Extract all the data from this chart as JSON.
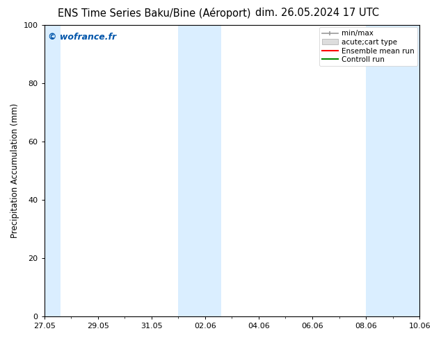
{
  "title_left": "ENS Time Series Baku/Bine (Aéroport)",
  "title_right": "dim. 26.05.2024 17 UTC",
  "ylabel": "Precipitation Accumulation (mm)",
  "ylim": [
    0,
    100
  ],
  "yticks": [
    0,
    20,
    40,
    60,
    80,
    100
  ],
  "xtick_labels": [
    "27.05",
    "29.05",
    "31.05",
    "02.06",
    "04.06",
    "06.06",
    "08.06",
    "10.06"
  ],
  "xtick_values": [
    0,
    2,
    4,
    6,
    8,
    10,
    12,
    14
  ],
  "xlim": [
    0,
    14
  ],
  "watermark": "© wofrance.fr",
  "watermark_color": "#0055aa",
  "background_color": "#ffffff",
  "shade_color": "#daeeff",
  "shaded_regions": [
    {
      "x_start": 0.0,
      "x_end": 0.6
    },
    {
      "x_start": 5.0,
      "x_end": 6.6
    },
    {
      "x_start": 12.0,
      "x_end": 14.0
    }
  ],
  "legend_entries": [
    {
      "label": "min/max",
      "color": "#aaaaaa"
    },
    {
      "label": "acute;cart type",
      "color": "#cccccc"
    },
    {
      "label": "Ensemble mean run",
      "color": "#ff0000"
    },
    {
      "label": "Controll run",
      "color": "#008800"
    }
  ],
  "title_fontsize": 10.5,
  "ylabel_fontsize": 8.5,
  "tick_fontsize": 8,
  "legend_fontsize": 7.5,
  "watermark_fontsize": 9
}
